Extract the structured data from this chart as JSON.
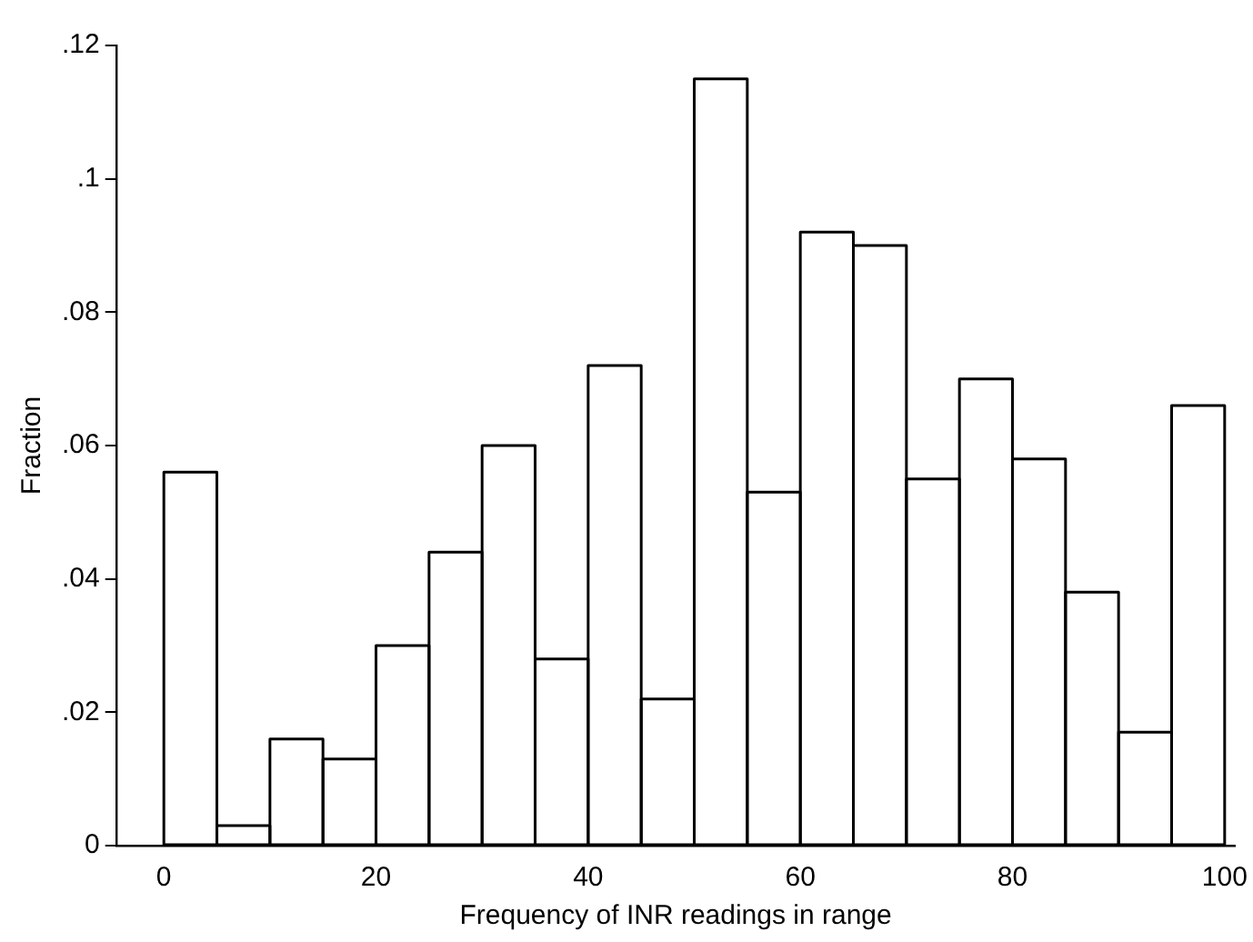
{
  "chart_data": {
    "type": "histogram",
    "xlabel": "Frequency of INR readings in range",
    "ylabel": "Fraction",
    "bins": [
      0,
      5,
      10,
      15,
      20,
      25,
      30,
      35,
      40,
      45,
      50,
      55,
      60,
      65,
      70,
      75,
      80,
      85,
      90,
      95,
      100
    ],
    "values": [
      0.056,
      0.003,
      0.016,
      0.013,
      0.03,
      0.044,
      0.06,
      0.028,
      0.072,
      0.022,
      0.115,
      0.053,
      0.092,
      0.09,
      0.055,
      0.07,
      0.058,
      0.038,
      0.017,
      0.066
    ],
    "color": "#000000",
    "xlim": [
      -4.5,
      101
    ],
    "xticks": [
      0,
      20,
      40,
      60,
      80,
      100
    ],
    "ylim": [
      0,
      0.12
    ],
    "yticks": [
      0,
      {
        "value": 0.02,
        "label": ".02"
      },
      {
        "value": 0.04,
        "label": ".04"
      },
      {
        "value": 0.06,
        "label": ".06"
      },
      {
        "value": 0.08,
        "label": ".08"
      },
      {
        "value": 0.1,
        "label": ".1"
      },
      {
        "value": 0.12,
        "label": ".12"
      }
    ],
    "grid": false,
    "legend": false
  }
}
